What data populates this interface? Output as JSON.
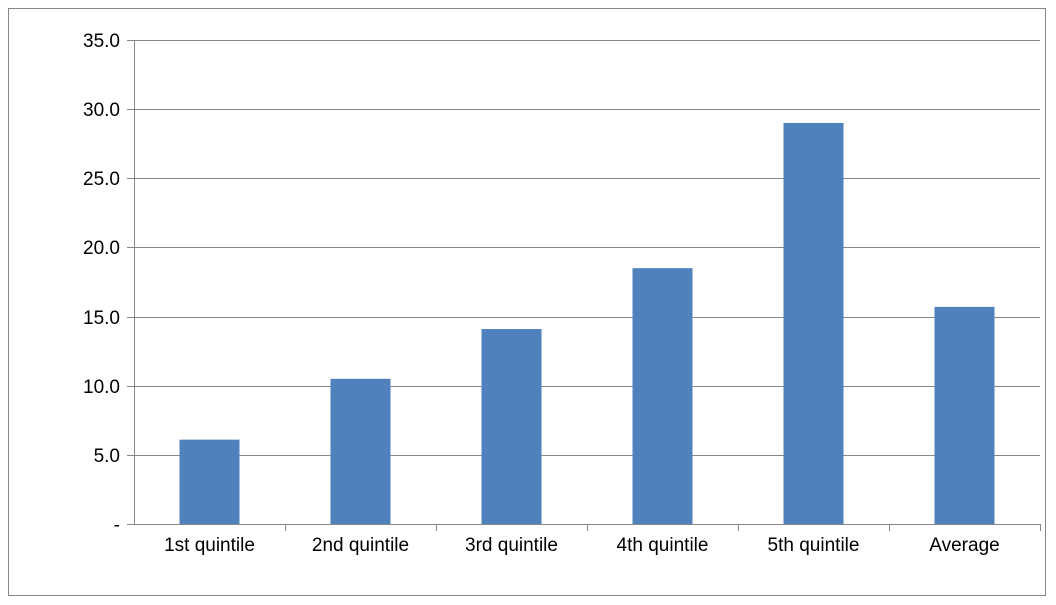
{
  "chart_data": {
    "type": "bar",
    "categories": [
      "1st quintile",
      "2nd quintile",
      "3rd quintile",
      "4th quintile",
      "5th quintile",
      "Average"
    ],
    "values": [
      6.1,
      10.5,
      14.1,
      18.5,
      29.0,
      15.7
    ],
    "ylim": [
      0,
      35
    ],
    "y_ticks": [
      0,
      5,
      10,
      15,
      20,
      25,
      30,
      35
    ],
    "y_tick_labels": [
      "-",
      "5.0",
      "10.0",
      "15.0",
      "20.0",
      "25.0",
      "30.0",
      "35.0"
    ],
    "grid": true,
    "legend": false,
    "bar_color": "#4F81BD",
    "grid_color": "#868686"
  }
}
